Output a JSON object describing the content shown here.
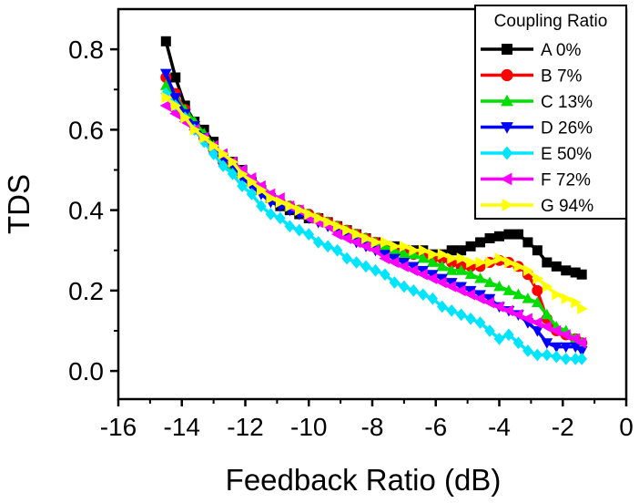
{
  "chart_data": {
    "type": "line",
    "title": "",
    "xlabel": "Feedback Ratio (dB)",
    "ylabel": "TDS",
    "xlim": [
      -16,
      0
    ],
    "ylim": [
      -0.07,
      0.9
    ],
    "xticks": [
      -16,
      -14,
      -12,
      -10,
      -8,
      -6,
      -4,
      -2,
      0
    ],
    "xtick_labels": [
      "-16",
      "-14",
      "-12",
      "-10",
      "-8",
      "-6",
      "-4",
      "-2",
      "0"
    ],
    "yticks": [
      0.0,
      0.2,
      0.4,
      0.6,
      0.8
    ],
    "ytick_labels": [
      "0.0",
      "0.2",
      "0.4",
      "0.6",
      "0.8"
    ],
    "grid": false,
    "legend": {
      "title": "Coupling Ratio",
      "position": "top-right"
    },
    "series": [
      {
        "name": "A 0%",
        "color": "#000000",
        "marker": "square",
        "x": [
          -14.5,
          -14.2,
          -13.9,
          -13.6,
          -13.3,
          -13.0,
          -12.7,
          -12.4,
          -12.1,
          -11.8,
          -11.5,
          -11.2,
          -10.9,
          -10.6,
          -10.3,
          -10.0,
          -9.7,
          -9.4,
          -9.1,
          -8.8,
          -8.5,
          -8.2,
          -7.9,
          -7.6,
          -7.3,
          -7.0,
          -6.7,
          -6.4,
          -6.1,
          -5.8,
          -5.5,
          -5.2,
          -4.9,
          -4.6,
          -4.3,
          -4.0,
          -3.7,
          -3.4,
          -3.1,
          -2.8,
          -2.5,
          -2.2,
          -1.9,
          -1.6,
          -1.4
        ],
        "y": [
          0.82,
          0.73,
          0.66,
          0.62,
          0.6,
          0.57,
          0.53,
          0.52,
          0.5,
          0.47,
          0.45,
          0.43,
          0.41,
          0.4,
          0.39,
          0.38,
          0.38,
          0.37,
          0.36,
          0.35,
          0.34,
          0.33,
          0.32,
          0.31,
          0.31,
          0.3,
          0.3,
          0.3,
          0.29,
          0.29,
          0.3,
          0.3,
          0.31,
          0.32,
          0.33,
          0.335,
          0.34,
          0.34,
          0.32,
          0.3,
          0.27,
          0.26,
          0.25,
          0.245,
          0.24
        ]
      },
      {
        "name": "B 7%",
        "color": "#ff0000",
        "marker": "circle",
        "x": [
          -14.5,
          -14.2,
          -13.9,
          -13.6,
          -13.3,
          -13.0,
          -12.7,
          -12.4,
          -12.1,
          -11.8,
          -11.5,
          -11.2,
          -10.9,
          -10.6,
          -10.3,
          -10.0,
          -9.7,
          -9.4,
          -9.1,
          -8.8,
          -8.5,
          -8.2,
          -7.9,
          -7.6,
          -7.3,
          -7.0,
          -6.7,
          -6.4,
          -6.1,
          -5.8,
          -5.5,
          -5.2,
          -4.9,
          -4.6,
          -4.3,
          -4.0,
          -3.7,
          -3.4,
          -3.1,
          -2.8,
          -2.5,
          -2.2,
          -1.9,
          -1.6,
          -1.4
        ],
        "y": [
          0.73,
          0.69,
          0.65,
          0.61,
          0.58,
          0.55,
          0.52,
          0.51,
          0.49,
          0.47,
          0.45,
          0.43,
          0.42,
          0.41,
          0.4,
          0.39,
          0.38,
          0.37,
          0.36,
          0.35,
          0.34,
          0.33,
          0.32,
          0.31,
          0.3,
          0.3,
          0.29,
          0.29,
          0.28,
          0.28,
          0.27,
          0.26,
          0.26,
          0.26,
          0.27,
          0.275,
          0.27,
          0.26,
          0.24,
          0.2,
          0.13,
          0.1,
          0.09,
          0.08,
          0.07
        ]
      },
      {
        "name": "C 13%",
        "color": "#00dd00",
        "marker": "triangle-up",
        "x": [
          -14.5,
          -14.2,
          -13.9,
          -13.6,
          -13.3,
          -13.0,
          -12.7,
          -12.4,
          -12.1,
          -11.8,
          -11.5,
          -11.2,
          -10.9,
          -10.6,
          -10.3,
          -10.0,
          -9.7,
          -9.4,
          -9.1,
          -8.8,
          -8.5,
          -8.2,
          -7.9,
          -7.6,
          -7.3,
          -7.0,
          -6.7,
          -6.4,
          -6.1,
          -5.8,
          -5.5,
          -5.2,
          -4.9,
          -4.6,
          -4.3,
          -4.0,
          -3.7,
          -3.4,
          -3.1,
          -2.8,
          -2.5,
          -2.2,
          -1.9,
          -1.6,
          -1.4
        ],
        "y": [
          0.71,
          0.68,
          0.65,
          0.62,
          0.59,
          0.56,
          0.53,
          0.51,
          0.49,
          0.47,
          0.45,
          0.43,
          0.42,
          0.41,
          0.4,
          0.39,
          0.38,
          0.37,
          0.36,
          0.35,
          0.34,
          0.33,
          0.32,
          0.31,
          0.3,
          0.29,
          0.29,
          0.28,
          0.27,
          0.26,
          0.25,
          0.25,
          0.24,
          0.23,
          0.22,
          0.21,
          0.2,
          0.19,
          0.18,
          0.17,
          0.14,
          0.11,
          0.1,
          0.08,
          0.07
        ]
      },
      {
        "name": "D 26%",
        "color": "#0000ff",
        "marker": "triangle-down",
        "x": [
          -14.5,
          -14.2,
          -13.9,
          -13.6,
          -13.3,
          -13.0,
          -12.7,
          -12.4,
          -12.1,
          -11.8,
          -11.5,
          -11.2,
          -10.9,
          -10.6,
          -10.3,
          -10.0,
          -9.7,
          -9.4,
          -9.1,
          -8.8,
          -8.5,
          -8.2,
          -7.9,
          -7.6,
          -7.3,
          -7.0,
          -6.7,
          -6.4,
          -6.1,
          -5.8,
          -5.5,
          -5.2,
          -4.9,
          -4.6,
          -4.3,
          -4.0,
          -3.7,
          -3.4,
          -3.1,
          -2.8,
          -2.5,
          -2.2,
          -1.9,
          -1.6,
          -1.4
        ],
        "y": [
          0.74,
          0.68,
          0.64,
          0.61,
          0.58,
          0.55,
          0.53,
          0.51,
          0.48,
          0.46,
          0.44,
          0.42,
          0.41,
          0.4,
          0.39,
          0.38,
          0.37,
          0.36,
          0.35,
          0.34,
          0.32,
          0.31,
          0.3,
          0.29,
          0.28,
          0.27,
          0.26,
          0.25,
          0.24,
          0.23,
          0.22,
          0.21,
          0.2,
          0.19,
          0.18,
          0.16,
          0.15,
          0.14,
          0.12,
          0.1,
          0.07,
          0.06,
          0.06,
          0.06,
          0.05
        ]
      },
      {
        "name": "E 50%",
        "color": "#00e5ff",
        "marker": "diamond",
        "x": [
          -14.5,
          -14.2,
          -13.9,
          -13.6,
          -13.3,
          -13.0,
          -12.7,
          -12.4,
          -12.1,
          -11.8,
          -11.5,
          -11.2,
          -10.9,
          -10.6,
          -10.3,
          -10.0,
          -9.7,
          -9.4,
          -9.1,
          -8.8,
          -8.5,
          -8.2,
          -7.9,
          -7.6,
          -7.3,
          -7.0,
          -6.7,
          -6.4,
          -6.1,
          -5.8,
          -5.5,
          -5.2,
          -4.9,
          -4.6,
          -4.3,
          -4.0,
          -3.7,
          -3.4,
          -3.1,
          -2.8,
          -2.5,
          -2.2,
          -1.9,
          -1.6,
          -1.4
        ],
        "y": [
          0.69,
          0.66,
          0.63,
          0.6,
          0.57,
          0.54,
          0.51,
          0.49,
          0.46,
          0.44,
          0.41,
          0.39,
          0.38,
          0.36,
          0.35,
          0.34,
          0.32,
          0.31,
          0.3,
          0.28,
          0.27,
          0.26,
          0.25,
          0.24,
          0.22,
          0.21,
          0.2,
          0.19,
          0.18,
          0.16,
          0.15,
          0.14,
          0.13,
          0.12,
          0.1,
          0.08,
          0.09,
          0.07,
          0.05,
          0.04,
          0.04,
          0.035,
          0.03,
          0.03,
          0.03
        ]
      },
      {
        "name": "F 72%",
        "color": "#ff00ff",
        "marker": "triangle-left",
        "x": [
          -14.5,
          -14.2,
          -13.9,
          -13.6,
          -13.3,
          -13.0,
          -12.7,
          -12.4,
          -12.1,
          -11.8,
          -11.5,
          -11.2,
          -10.9,
          -10.6,
          -10.3,
          -10.0,
          -9.7,
          -9.4,
          -9.1,
          -8.8,
          -8.5,
          -8.2,
          -7.9,
          -7.6,
          -7.3,
          -7.0,
          -6.7,
          -6.4,
          -6.1,
          -5.8,
          -5.5,
          -5.2,
          -4.9,
          -4.6,
          -4.3,
          -4.0,
          -3.7,
          -3.4,
          -3.1,
          -2.8,
          -2.5,
          -2.2,
          -1.9,
          -1.6,
          -1.4
        ],
        "y": [
          0.66,
          0.64,
          0.62,
          0.6,
          0.58,
          0.56,
          0.54,
          0.52,
          0.5,
          0.48,
          0.46,
          0.44,
          0.43,
          0.41,
          0.4,
          0.38,
          0.37,
          0.36,
          0.34,
          0.33,
          0.32,
          0.31,
          0.3,
          0.28,
          0.27,
          0.26,
          0.25,
          0.24,
          0.23,
          0.22,
          0.21,
          0.2,
          0.19,
          0.18,
          0.17,
          0.16,
          0.15,
          0.14,
          0.13,
          0.12,
          0.11,
          0.1,
          0.09,
          0.08,
          0.07
        ]
      },
      {
        "name": "G 94%",
        "color": "#ffff00",
        "marker": "triangle-right",
        "x": [
          -14.5,
          -14.2,
          -13.9,
          -13.6,
          -13.3,
          -13.0,
          -12.7,
          -12.4,
          -12.1,
          -11.8,
          -11.5,
          -11.2,
          -10.9,
          -10.6,
          -10.3,
          -10.0,
          -9.7,
          -9.4,
          -9.1,
          -8.8,
          -8.5,
          -8.2,
          -7.9,
          -7.6,
          -7.3,
          -7.0,
          -6.7,
          -6.4,
          -6.1,
          -5.8,
          -5.5,
          -5.2,
          -4.9,
          -4.6,
          -4.3,
          -4.0,
          -3.7,
          -3.4,
          -3.1,
          -2.8,
          -2.5,
          -2.2,
          -1.9,
          -1.6,
          -1.4
        ],
        "y": [
          0.68,
          0.66,
          0.63,
          0.6,
          0.58,
          0.56,
          0.54,
          0.52,
          0.49,
          0.47,
          0.45,
          0.43,
          0.42,
          0.41,
          0.4,
          0.39,
          0.38,
          0.37,
          0.36,
          0.35,
          0.34,
          0.33,
          0.32,
          0.32,
          0.31,
          0.31,
          0.3,
          0.3,
          0.29,
          0.29,
          0.28,
          0.28,
          0.27,
          0.27,
          0.27,
          0.28,
          0.27,
          0.26,
          0.25,
          0.23,
          0.21,
          0.19,
          0.18,
          0.17,
          0.155
        ]
      }
    ]
  }
}
